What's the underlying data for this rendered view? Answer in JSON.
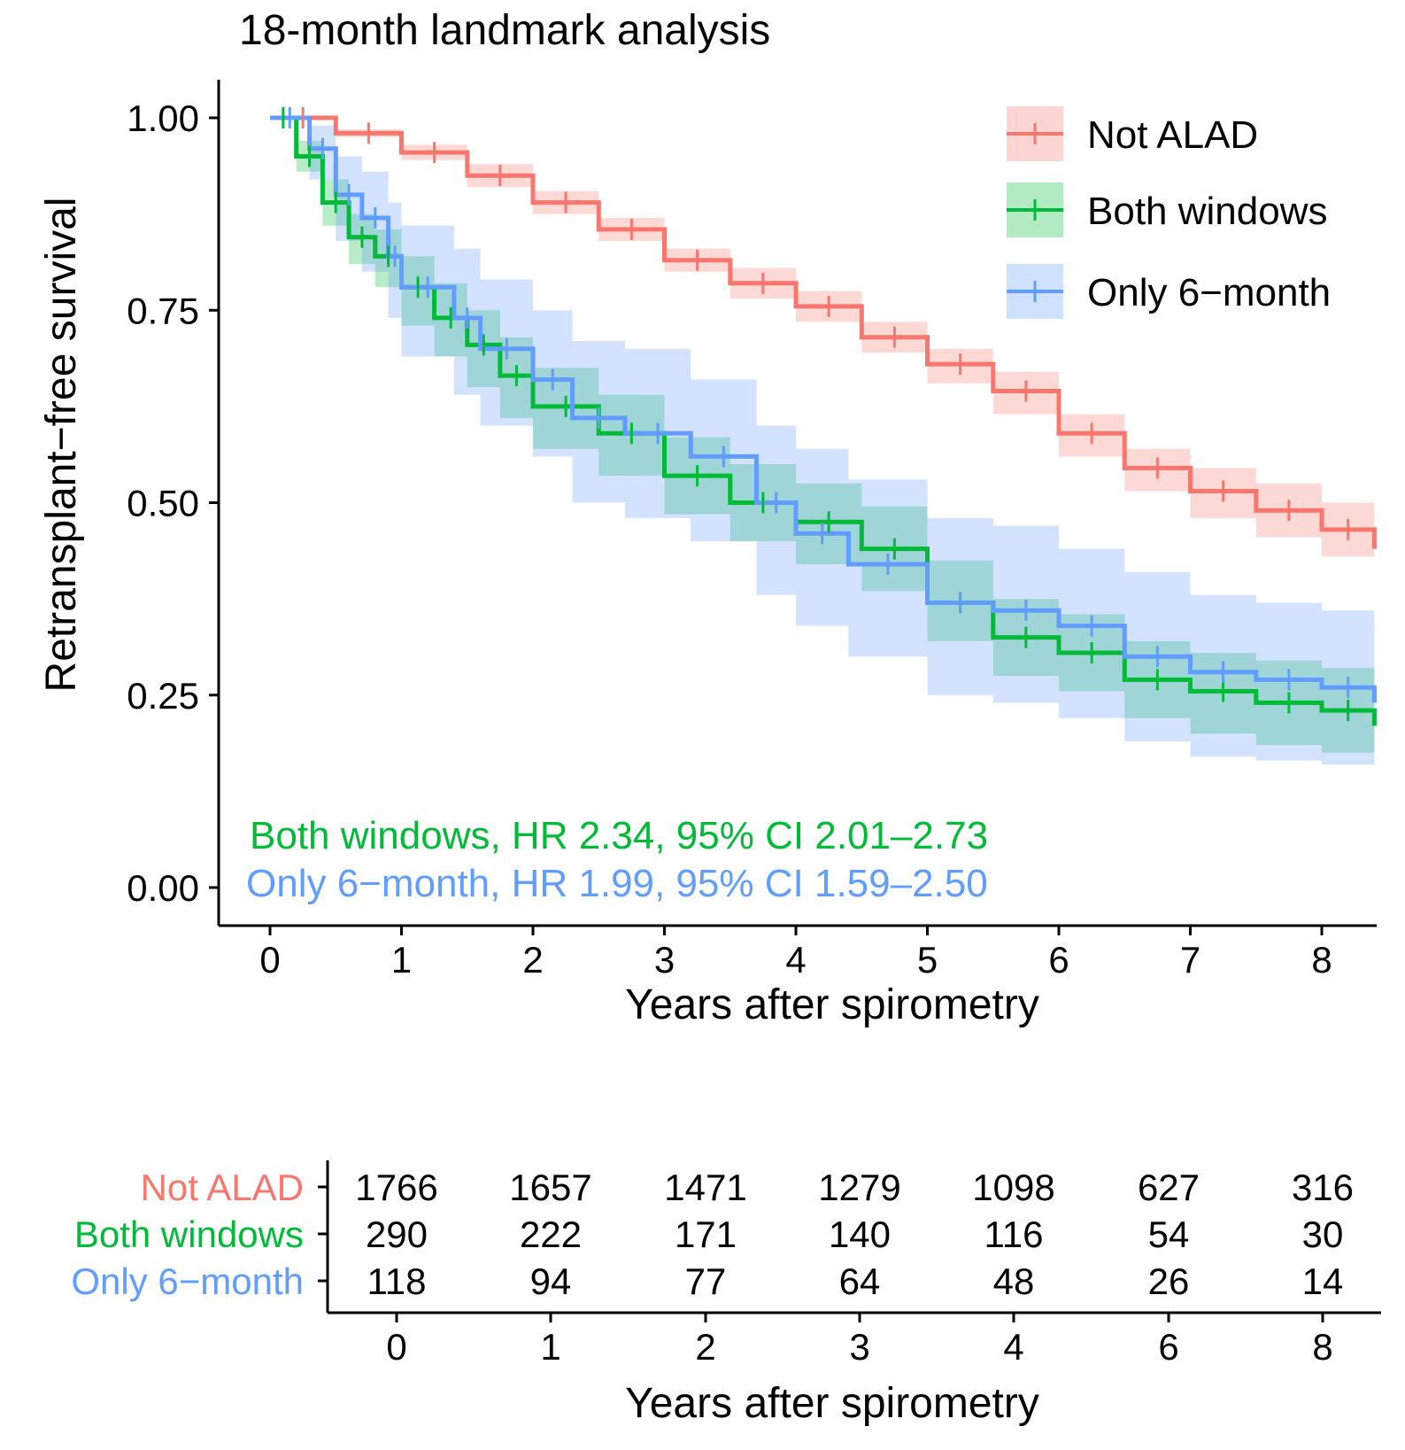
{
  "chart_data": [
    {
      "type": "line",
      "subtype": "kaplan-meier",
      "title": "18-month landmark analysis",
      "xlabel": "Years after spirometry",
      "ylabel": "Retransplant−free survival",
      "xlim": [
        0,
        8.4
      ],
      "ylim": [
        0,
        1.0
      ],
      "xticks": [
        0,
        1,
        2,
        3,
        4,
        5,
        6,
        7,
        8
      ],
      "yticks": [
        0.0,
        0.25,
        0.5,
        0.75,
        1.0
      ],
      "yticklabels": [
        "0.00",
        "0.25",
        "0.50",
        "0.75",
        "1.00"
      ],
      "legend_position": "top-right",
      "grid": false,
      "series": [
        {
          "name": "Not ALAD",
          "color": "#F8766D",
          "fill": "#F8766D",
          "x": [
            0,
            0.5,
            1,
            1.5,
            2,
            2.5,
            3,
            3.5,
            4,
            4.5,
            5,
            5.5,
            6,
            6.5,
            7,
            7.5,
            8,
            8.4
          ],
          "y": [
            1.0,
            0.98,
            0.955,
            0.925,
            0.89,
            0.855,
            0.815,
            0.785,
            0.755,
            0.715,
            0.68,
            0.645,
            0.59,
            0.545,
            0.515,
            0.49,
            0.465,
            0.44
          ],
          "ci_lower": [
            1.0,
            0.975,
            0.945,
            0.91,
            0.875,
            0.84,
            0.8,
            0.765,
            0.735,
            0.695,
            0.655,
            0.615,
            0.56,
            0.515,
            0.48,
            0.455,
            0.43,
            0.41
          ],
          "ci_upper": [
            1.0,
            0.985,
            0.965,
            0.94,
            0.905,
            0.87,
            0.83,
            0.805,
            0.775,
            0.735,
            0.7,
            0.67,
            0.615,
            0.57,
            0.545,
            0.525,
            0.5,
            0.475
          ]
        },
        {
          "name": "Both windows",
          "color": "#00BA38",
          "fill": "#00BA38",
          "x": [
            0,
            0.2,
            0.4,
            0.6,
            0.8,
            1.0,
            1.25,
            1.5,
            1.75,
            2.0,
            2.5,
            3.0,
            3.5,
            4.0,
            4.5,
            5.0,
            5.5,
            6.0,
            6.5,
            7.0,
            7.5,
            8.0,
            8.4
          ],
          "y": [
            1.0,
            0.95,
            0.89,
            0.845,
            0.82,
            0.78,
            0.74,
            0.705,
            0.665,
            0.625,
            0.59,
            0.535,
            0.5,
            0.475,
            0.44,
            0.37,
            0.325,
            0.305,
            0.27,
            0.255,
            0.24,
            0.23,
            0.21
          ],
          "ci_lower": [
            1.0,
            0.93,
            0.86,
            0.81,
            0.78,
            0.73,
            0.69,
            0.65,
            0.61,
            0.57,
            0.535,
            0.485,
            0.45,
            0.42,
            0.385,
            0.32,
            0.275,
            0.255,
            0.22,
            0.2,
            0.185,
            0.175,
            0.16
          ],
          "ci_upper": [
            1.0,
            0.97,
            0.92,
            0.875,
            0.855,
            0.82,
            0.785,
            0.75,
            0.715,
            0.675,
            0.64,
            0.585,
            0.55,
            0.525,
            0.495,
            0.425,
            0.375,
            0.355,
            0.32,
            0.305,
            0.295,
            0.285,
            0.27
          ]
        },
        {
          "name": "Only 6−month",
          "color": "#619CFF",
          "fill": "#619CFF",
          "x": [
            0,
            0.3,
            0.5,
            0.7,
            0.9,
            1.0,
            1.4,
            1.6,
            2.0,
            2.3,
            2.7,
            3.2,
            3.7,
            4.0,
            4.4,
            5.0,
            5.5,
            6.0,
            6.5,
            7.0,
            7.5,
            8.0,
            8.4
          ],
          "y": [
            1.0,
            0.96,
            0.9,
            0.87,
            0.82,
            0.78,
            0.74,
            0.7,
            0.66,
            0.61,
            0.59,
            0.56,
            0.5,
            0.46,
            0.42,
            0.37,
            0.36,
            0.34,
            0.3,
            0.28,
            0.27,
            0.26,
            0.24
          ],
          "ci_lower": [
            1.0,
            0.92,
            0.84,
            0.8,
            0.74,
            0.69,
            0.64,
            0.6,
            0.56,
            0.5,
            0.48,
            0.45,
            0.38,
            0.34,
            0.3,
            0.25,
            0.24,
            0.22,
            0.19,
            0.17,
            0.165,
            0.16,
            0.15
          ],
          "ci_upper": [
            1.0,
            0.99,
            0.95,
            0.93,
            0.89,
            0.86,
            0.83,
            0.79,
            0.75,
            0.71,
            0.7,
            0.66,
            0.6,
            0.57,
            0.53,
            0.48,
            0.47,
            0.44,
            0.41,
            0.38,
            0.37,
            0.36,
            0.35
          ]
        }
      ],
      "annotations": [
        {
          "text": "Both windows, HR 2.34, 95% CI 2.01–2.73",
          "color": "#00BA38"
        },
        {
          "text": "Only 6−month, HR 1.99, 95% CI 1.59–2.50",
          "color": "#619CFF"
        }
      ]
    },
    {
      "type": "table",
      "title": "",
      "xlabel": "Years after spirometry",
      "columns": [
        "0",
        "1",
        "2",
        "3",
        "4",
        "6",
        "8"
      ],
      "rows": [
        {
          "label": "Not ALAD",
          "color": "#F8766D",
          "values": [
            "1766",
            "1657",
            "1471",
            "1279",
            "1098",
            "627",
            "316"
          ]
        },
        {
          "label": "Both windows",
          "color": "#00BA38",
          "values": [
            "290",
            "222",
            "171",
            "140",
            "116",
            "54",
            "30"
          ]
        },
        {
          "label": "Only 6−month",
          "color": "#619CFF",
          "values": [
            "118",
            "94",
            "77",
            "64",
            "48",
            "26",
            "14"
          ]
        }
      ]
    }
  ]
}
